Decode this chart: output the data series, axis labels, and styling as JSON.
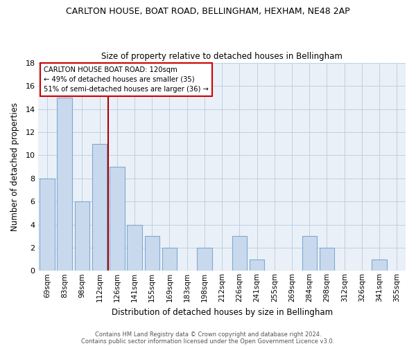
{
  "title": "CARLTON HOUSE, BOAT ROAD, BELLINGHAM, HEXHAM, NE48 2AP",
  "subtitle": "Size of property relative to detached houses in Bellingham",
  "xlabel": "Distribution of detached houses by size in Bellingham",
  "ylabel": "Number of detached properties",
  "footer_line1": "Contains HM Land Registry data © Crown copyright and database right 2024.",
  "footer_line2": "Contains public sector information licensed under the Open Government Licence v3.0.",
  "bar_labels": [
    "69sqm",
    "83sqm",
    "98sqm",
    "112sqm",
    "126sqm",
    "141sqm",
    "155sqm",
    "169sqm",
    "183sqm",
    "198sqm",
    "212sqm",
    "226sqm",
    "241sqm",
    "255sqm",
    "269sqm",
    "284sqm",
    "298sqm",
    "312sqm",
    "326sqm",
    "341sqm",
    "355sqm"
  ],
  "bar_values": [
    8,
    15,
    6,
    11,
    9,
    4,
    3,
    2,
    0,
    2,
    0,
    3,
    1,
    0,
    0,
    3,
    2,
    0,
    0,
    1,
    0
  ],
  "bar_color": "#c8d9ee",
  "bar_edge_color": "#7fa8d0",
  "annotation_title": "CARLTON HOUSE BOAT ROAD: 120sqm",
  "annotation_line1": "← 49% of detached houses are smaller (35)",
  "annotation_line2": "51% of semi-detached houses are larger (36) →",
  "annotation_box_facecolor": "#ffffff",
  "annotation_box_edgecolor": "#cc0000",
  "vline_color": "#aa0000",
  "vline_x": 3.5,
  "ylim": [
    0,
    18
  ],
  "yticks": [
    0,
    2,
    4,
    6,
    8,
    10,
    12,
    14,
    16,
    18
  ],
  "background_color": "#ffffff",
  "plot_bg_color": "#eaf0f8",
  "grid_color": "#c0cfe0"
}
